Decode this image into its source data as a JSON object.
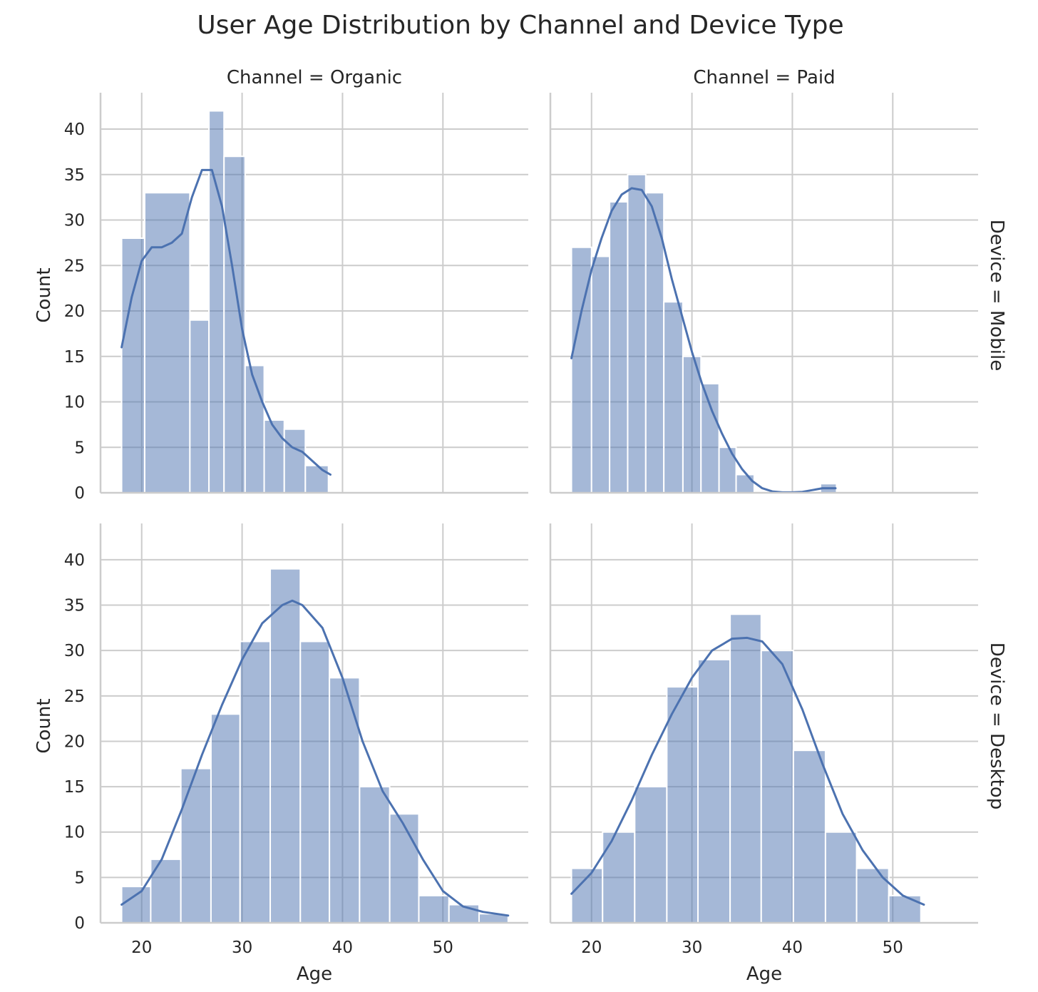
{
  "chart_data": {
    "type": "bar",
    "title": "User Age Distribution by Channel and Device Type",
    "xlabel": "Age",
    "ylabel": "Count",
    "xlim": [
      15.9,
      58.5
    ],
    "ylim": [
      0,
      44
    ],
    "xticks": [
      20,
      30,
      40,
      50
    ],
    "yticks": [
      0,
      5,
      10,
      15,
      20,
      25,
      30,
      35,
      40
    ],
    "grid": true,
    "color": "#4c72b0",
    "col_titles": [
      "Channel = Organic",
      "Channel = Paid"
    ],
    "row_titles": [
      "Device = Mobile",
      "Device = Desktop"
    ],
    "facets": [
      {
        "channel": "Organic",
        "device": "Mobile",
        "bin_edges": [
          18.0,
          20.3,
          24.8,
          26.7,
          28.2,
          30.3,
          32.2,
          34.2,
          36.3,
          38.6
        ],
        "counts": [
          28,
          33,
          19,
          42,
          37,
          14,
          8,
          7,
          3
        ],
        "kde_x": [
          18,
          19,
          20,
          21,
          22,
          23,
          24,
          25,
          26,
          27,
          28,
          29,
          30,
          31,
          32,
          33,
          34,
          35,
          36,
          37,
          38,
          38.8
        ],
        "kde_y": [
          16,
          21.5,
          25.5,
          27,
          27,
          27.5,
          28.5,
          32.5,
          35.5,
          35.5,
          31.5,
          25,
          18,
          13,
          10,
          7.5,
          6,
          5,
          4.5,
          3.5,
          2.5,
          2
        ]
      },
      {
        "channel": "Paid",
        "device": "Mobile",
        "bin_edges": [
          18.0,
          20.0,
          21.8,
          23.6,
          25.4,
          27.2,
          29.1,
          30.9,
          32.7,
          34.4,
          36.2,
          37.8,
          42.8,
          44.4
        ],
        "counts": [
          27,
          26,
          32,
          35,
          33,
          21,
          15,
          12,
          5,
          2,
          0,
          0,
          1
        ],
        "kde_x": [
          18,
          19,
          20,
          21,
          22,
          23,
          24,
          25,
          26,
          27,
          28,
          29,
          30,
          31,
          32,
          33,
          34,
          35,
          36,
          37,
          38,
          39,
          40,
          41,
          42,
          43,
          44.3
        ],
        "kde_y": [
          14.8,
          20,
          24.5,
          28,
          31,
          32.8,
          33.5,
          33.3,
          31.5,
          28,
          23.5,
          19.5,
          15.5,
          12,
          9,
          6.5,
          4.3,
          2.6,
          1.3,
          0.5,
          0.15,
          0.05,
          0.05,
          0.1,
          0.3,
          0.5,
          0.5
        ]
      },
      {
        "channel": "Organic",
        "device": "Desktop",
        "bin_edges": [
          18.0,
          20.9,
          23.9,
          26.9,
          29.8,
          32.8,
          35.8,
          38.7,
          41.7,
          44.7,
          47.6,
          50.6,
          53.6,
          56.5
        ],
        "counts": [
          4,
          7,
          17,
          23,
          31,
          39,
          31,
          27,
          15,
          12,
          3,
          2,
          1
        ],
        "kde_x": [
          18,
          20,
          22,
          24,
          26,
          28,
          30,
          32,
          34,
          35,
          36,
          38,
          40,
          42,
          44,
          46,
          48,
          50,
          52,
          54,
          56.5
        ],
        "kde_y": [
          2,
          3.5,
          7,
          12.5,
          18.5,
          24,
          29,
          33,
          35,
          35.5,
          35,
          32.5,
          27,
          20,
          14.5,
          11,
          7,
          3.5,
          1.8,
          1.2,
          0.8
        ]
      },
      {
        "channel": "Paid",
        "device": "Desktop",
        "bin_edges": [
          18.0,
          21.1,
          24.3,
          27.5,
          30.6,
          33.8,
          36.9,
          40.1,
          43.3,
          46.4,
          49.6,
          52.8
        ],
        "counts": [
          6,
          10,
          15,
          26,
          29,
          34,
          30,
          19,
          10,
          6,
          3
        ],
        "kde_x": [
          18,
          20,
          22,
          24,
          26,
          28,
          30,
          32,
          34,
          35.5,
          37,
          39,
          41,
          43,
          45,
          47,
          49,
          51,
          53.1
        ],
        "kde_y": [
          3.2,
          5.5,
          9,
          13.5,
          18.5,
          23,
          27,
          30,
          31.3,
          31.4,
          31,
          28.5,
          23.5,
          17.5,
          12,
          8,
          5,
          3,
          2
        ]
      }
    ]
  }
}
